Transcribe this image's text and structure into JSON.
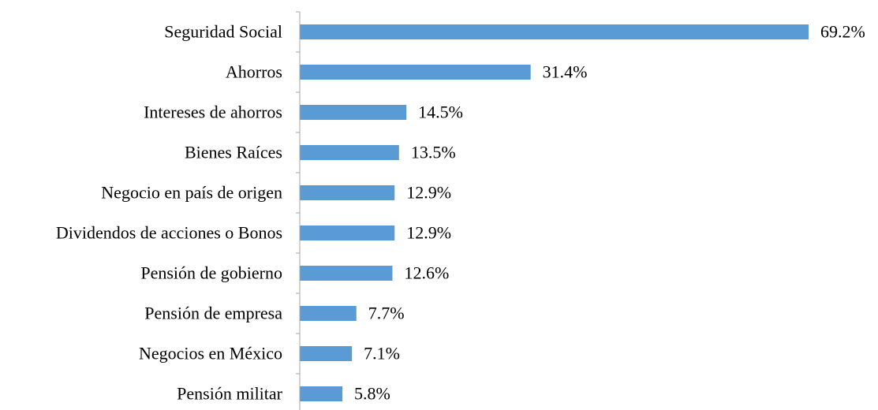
{
  "chart_data": {
    "type": "bar",
    "orientation": "horizontal",
    "categories": [
      "Seguridad Social",
      "Ahorros",
      "Intereses de ahorros",
      "Bienes Raíces",
      "Negocio en país de origen",
      "Dividendos de acciones o Bonos",
      "Pensión de gobierno",
      "Pensión de empresa",
      "Negocios en México",
      "Pensión militar"
    ],
    "values": [
      69.2,
      31.4,
      14.5,
      13.5,
      12.9,
      12.9,
      12.6,
      7.7,
      7.1,
      5.8
    ],
    "value_labels": [
      "69.2%",
      "31.4%",
      "14.5%",
      "13.5%",
      "12.9%",
      "12.9%",
      "12.6%",
      "7.7%",
      "7.1%",
      "5.8%"
    ],
    "xlim": [
      0,
      69.2
    ],
    "grid": false,
    "bar_color": "#5b9bd5",
    "axis_color": "#a6a6a6"
  }
}
